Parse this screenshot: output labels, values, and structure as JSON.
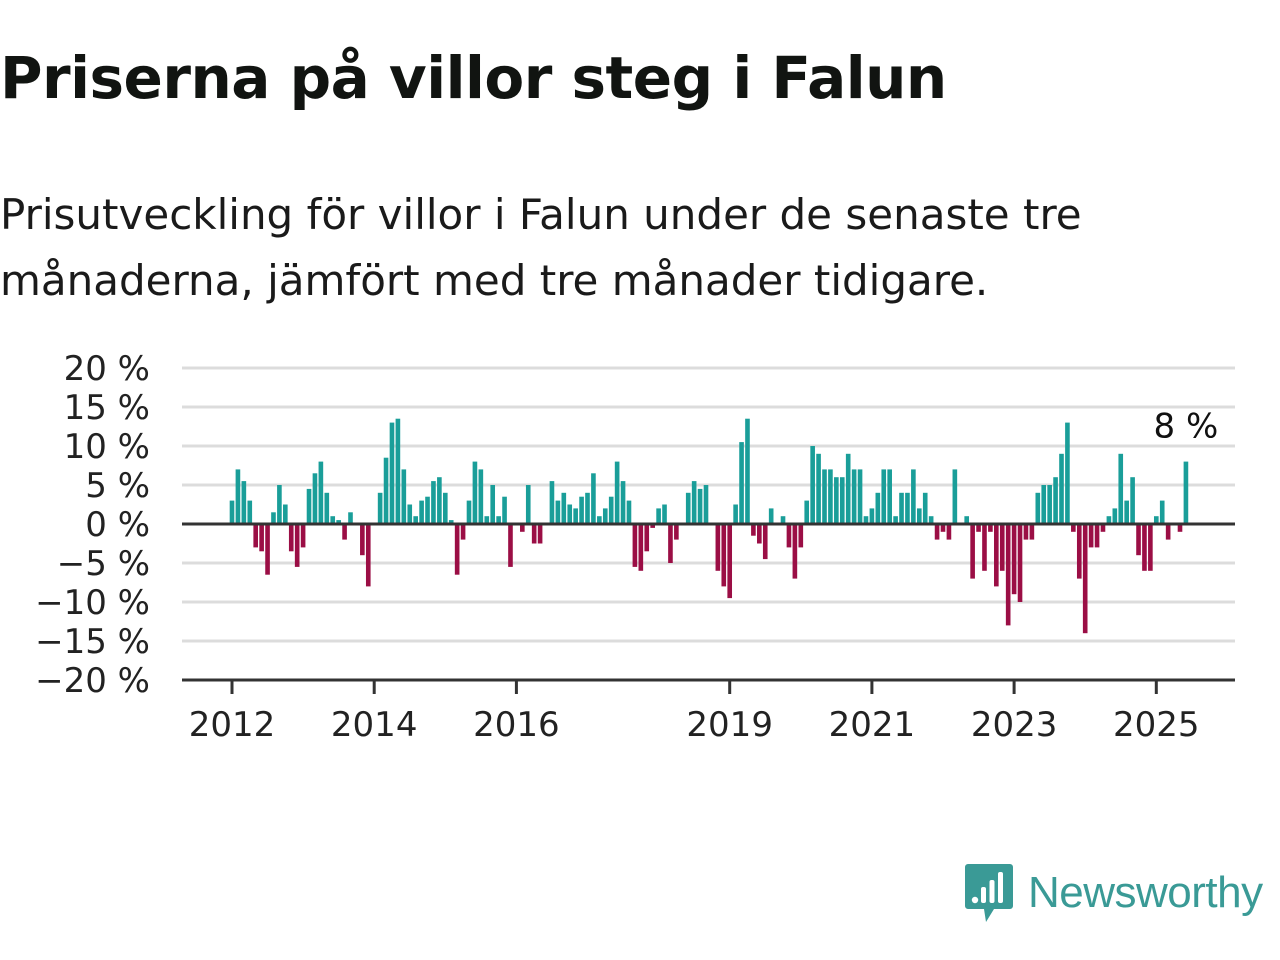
{
  "title": "Priserna på villor steg i Falun",
  "subtitle": "Prisutveckling för villor i Falun under de senaste tre månaderna, jämfört med tre månader tidigare.",
  "brand": {
    "name": "Newsworthy",
    "color": "#3a9a96"
  },
  "colors": {
    "positive": "#1a9e99",
    "negative": "#9b0e45",
    "grid": "#dcdcdc",
    "axis": "#333333"
  },
  "chart_data": {
    "type": "bar",
    "y_ticks": [
      "20 %",
      "15 %",
      "10 %",
      "5 %",
      "0 %",
      "−5 %",
      "−10 %",
      "−15 %",
      "−20 %"
    ],
    "ylim": [
      -20,
      20
    ],
    "x_ticks": [
      {
        "label": "2012",
        "t": 2012.0
      },
      {
        "label": "2014",
        "t": 2014.0
      },
      {
        "label": "2016",
        "t": 2016.0
      },
      {
        "label": "2019",
        "t": 2019.0
      },
      {
        "label": "2021",
        "t": 2021.0
      },
      {
        "label": "2023",
        "t": 2023.0
      },
      {
        "label": "2025",
        "t": 2025.0
      }
    ],
    "x_start": 2012.0,
    "x_step_months": 1,
    "annotation": {
      "text": "8 %",
      "value": 8
    },
    "values": [
      3,
      7,
      5.5,
      3,
      -3,
      -3.5,
      -6.5,
      1.5,
      5,
      2.5,
      -3.5,
      -5.5,
      -3,
      4.5,
      6.5,
      8,
      4,
      1,
      0.5,
      -2,
      1.5,
      0,
      -4,
      -8,
      0,
      4,
      8.5,
      13,
      13.5,
      7,
      2.5,
      1,
      3,
      3.5,
      5.5,
      6,
      4,
      0.5,
      -6.5,
      -2,
      3,
      8,
      7,
      1,
      5,
      1,
      3.5,
      -5.5,
      0,
      -1,
      5,
      -2.5,
      -2.5,
      0,
      5.5,
      3,
      4,
      2.5,
      2,
      3.5,
      4,
      6.5,
      1,
      2,
      3.5,
      8,
      5.5,
      3,
      -5.5,
      -6,
      -3.5,
      -0.5,
      2,
      2.5,
      -5,
      -2,
      0,
      4,
      5.5,
      4.5,
      5,
      0,
      -6,
      -8,
      -9.5,
      2.5,
      10.5,
      13.5,
      -1.5,
      -2.5,
      -4.5,
      2,
      0,
      1,
      -3,
      -7,
      -3,
      3,
      10,
      9,
      7,
      7,
      6,
      6,
      9,
      7,
      7,
      1,
      2,
      4,
      7,
      7,
      1,
      4,
      4,
      7,
      2,
      4,
      1,
      -2,
      -1,
      -2,
      7,
      0,
      1,
      -7,
      -1,
      -6,
      -1,
      -8,
      -6,
      -13,
      -9,
      -10,
      -2,
      -2,
      4,
      5,
      5,
      6,
      9,
      13,
      -1,
      -7,
      -14,
      -3,
      -3,
      -1,
      1,
      2,
      9,
      3,
      6,
      -4,
      -6,
      -6,
      1,
      3,
      -2,
      0,
      -1,
      8
    ]
  }
}
